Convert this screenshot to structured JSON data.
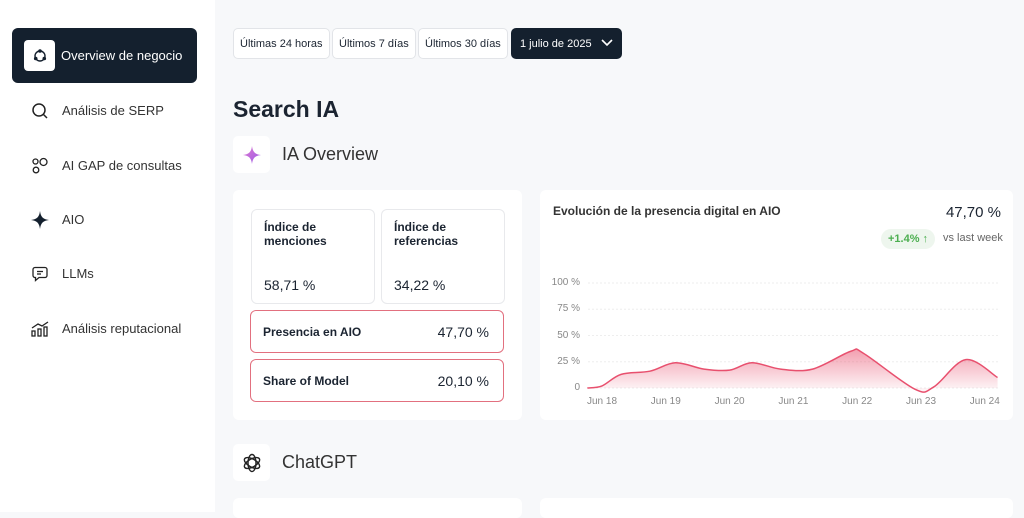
{
  "sidebar": {
    "items": [
      {
        "label": "Overview de negocio",
        "icon": "network-icon",
        "active": true
      },
      {
        "label": "Análisis de SERP",
        "icon": "search-icon"
      },
      {
        "label": "AI GAP de consultas",
        "icon": "circles-icon"
      },
      {
        "label": "AIO",
        "icon": "sparkle-icon"
      },
      {
        "label": "LLMs",
        "icon": "chat-icon"
      },
      {
        "label": "Análisis reputacional",
        "icon": "bar-chart-icon"
      }
    ]
  },
  "filters": {
    "last24": "Últimas 24 horas",
    "last7": "Últimos 7 días",
    "last30": "Últimos 30 días",
    "date": "1 julio de 2025"
  },
  "page_title": "Search IA",
  "section1": {
    "title": "IA Overview"
  },
  "section2": {
    "title": "ChatGPT"
  },
  "metrics": {
    "menciones_label": "Índice de menciones",
    "menciones_value": "58,71 %",
    "referencias_label": "Índice de referencias",
    "referencias_value": "34,22 %",
    "presencia_label": "Presencia en AIO",
    "presencia_value": "47,70 %",
    "share_label": "Share of Model",
    "share_value": "20,10 %"
  },
  "chart_panel": {
    "title": "Evolución de la presencia digital en AIO",
    "value": "47,70 %",
    "delta": "+1.4% ↑",
    "delta_label": "vs last week",
    "delta_color": "#4caf50",
    "accent": "#e8506e"
  },
  "chart_data": {
    "type": "area",
    "title": "Evolución de la presencia digital en AIO",
    "ylim": [
      0,
      100
    ],
    "yticks": [
      "100 %",
      "75 %",
      "50 %",
      "25 %",
      "0"
    ],
    "ytick_values": [
      100,
      75,
      50,
      25,
      0
    ],
    "categories": [
      "Jun 18",
      "Jun 19",
      "Jun 20",
      "Jun 21",
      "Jun 22",
      "Jun 23",
      "Jun 24"
    ],
    "points": [
      [
        -0.23,
        0
      ],
      [
        0,
        2
      ],
      [
        0.3,
        13
      ],
      [
        0.75,
        16
      ],
      [
        1.15,
        24
      ],
      [
        1.6,
        18
      ],
      [
        2,
        17
      ],
      [
        2.35,
        24
      ],
      [
        2.8,
        18
      ],
      [
        3.3,
        18
      ],
      [
        3.9,
        35
      ],
      [
        4.1,
        33
      ],
      [
        4.9,
        -1
      ],
      [
        5.2,
        1
      ],
      [
        5.7,
        27
      ],
      [
        6.2,
        10
      ]
    ]
  }
}
